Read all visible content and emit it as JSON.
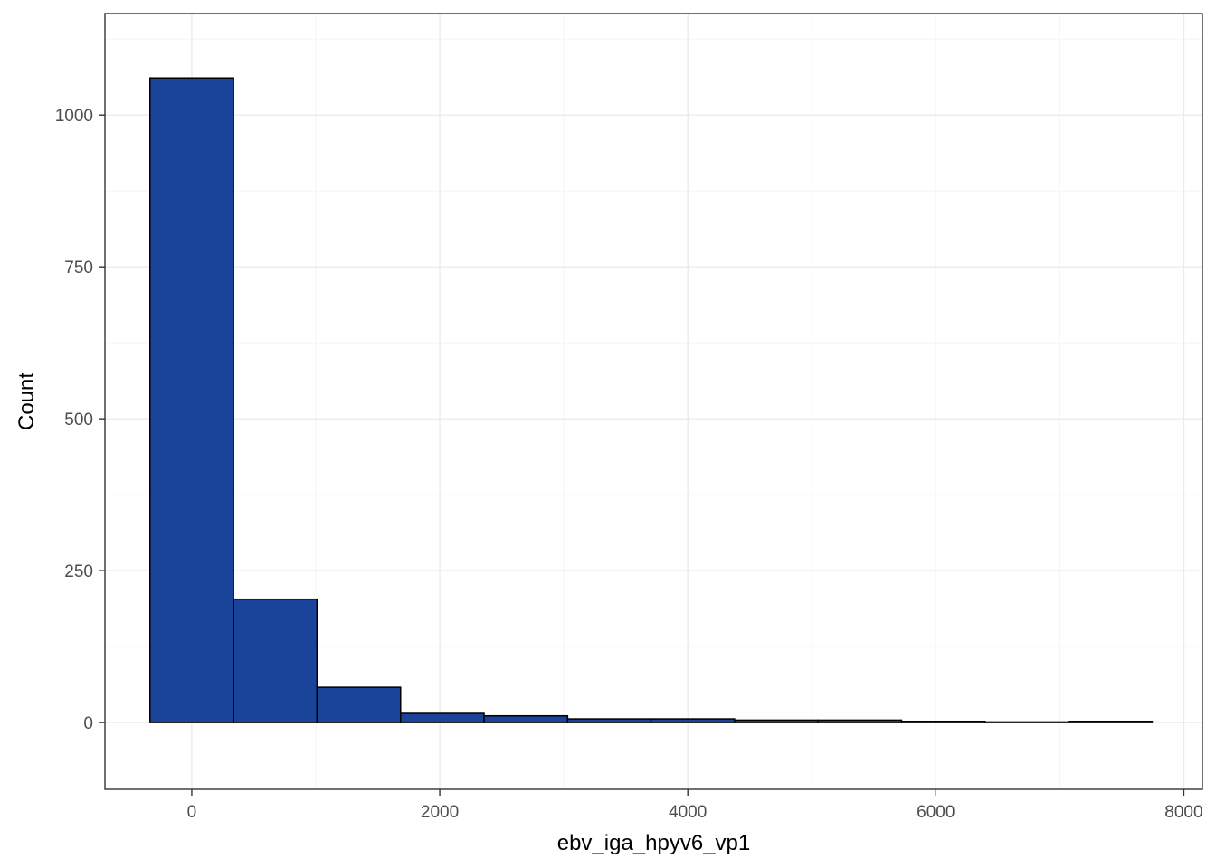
{
  "chart_data": {
    "type": "bar",
    "subtype": "histogram",
    "title": "",
    "xlabel": "ebv_iga_hpyv6_vp1",
    "ylabel": "Count",
    "xlim": [
      -700,
      8150
    ],
    "ylim": [
      -110,
      1167
    ],
    "x_ticks": [
      0,
      2000,
      4000,
      6000,
      8000
    ],
    "x_tick_labels": [
      "0",
      "2000",
      "4000",
      "6000",
      "8000"
    ],
    "y_ticks": [
      0,
      250,
      500,
      750,
      1000
    ],
    "y_tick_labels": [
      "0",
      "250",
      "500",
      "750",
      "1000"
    ],
    "bin_width": 673,
    "bins": [
      {
        "x0": -337,
        "x1": 337,
        "count": 1061
      },
      {
        "x0": 337,
        "x1": 1010,
        "count": 203
      },
      {
        "x0": 1010,
        "x1": 1684,
        "count": 58
      },
      {
        "x0": 1684,
        "x1": 2357,
        "count": 15
      },
      {
        "x0": 2357,
        "x1": 3031,
        "count": 11
      },
      {
        "x0": 3031,
        "x1": 3704,
        "count": 6
      },
      {
        "x0": 3704,
        "x1": 4377,
        "count": 6
      },
      {
        "x0": 4377,
        "x1": 5051,
        "count": 4
      },
      {
        "x0": 5051,
        "x1": 5724,
        "count": 4
      },
      {
        "x0": 5724,
        "x1": 6398,
        "count": 2
      },
      {
        "x0": 6398,
        "x1": 7071,
        "count": 1
      },
      {
        "x0": 7071,
        "x1": 7745,
        "count": 2
      }
    ],
    "grid": true,
    "legend": "none",
    "colors": {
      "bar_fill": "#1a4499",
      "bar_stroke": "#000000",
      "panel_border": "#333333",
      "grid_major": "#ebebeb",
      "grid_minor": "#f5f5f5",
      "tick_text": "#4d4d4d"
    }
  }
}
